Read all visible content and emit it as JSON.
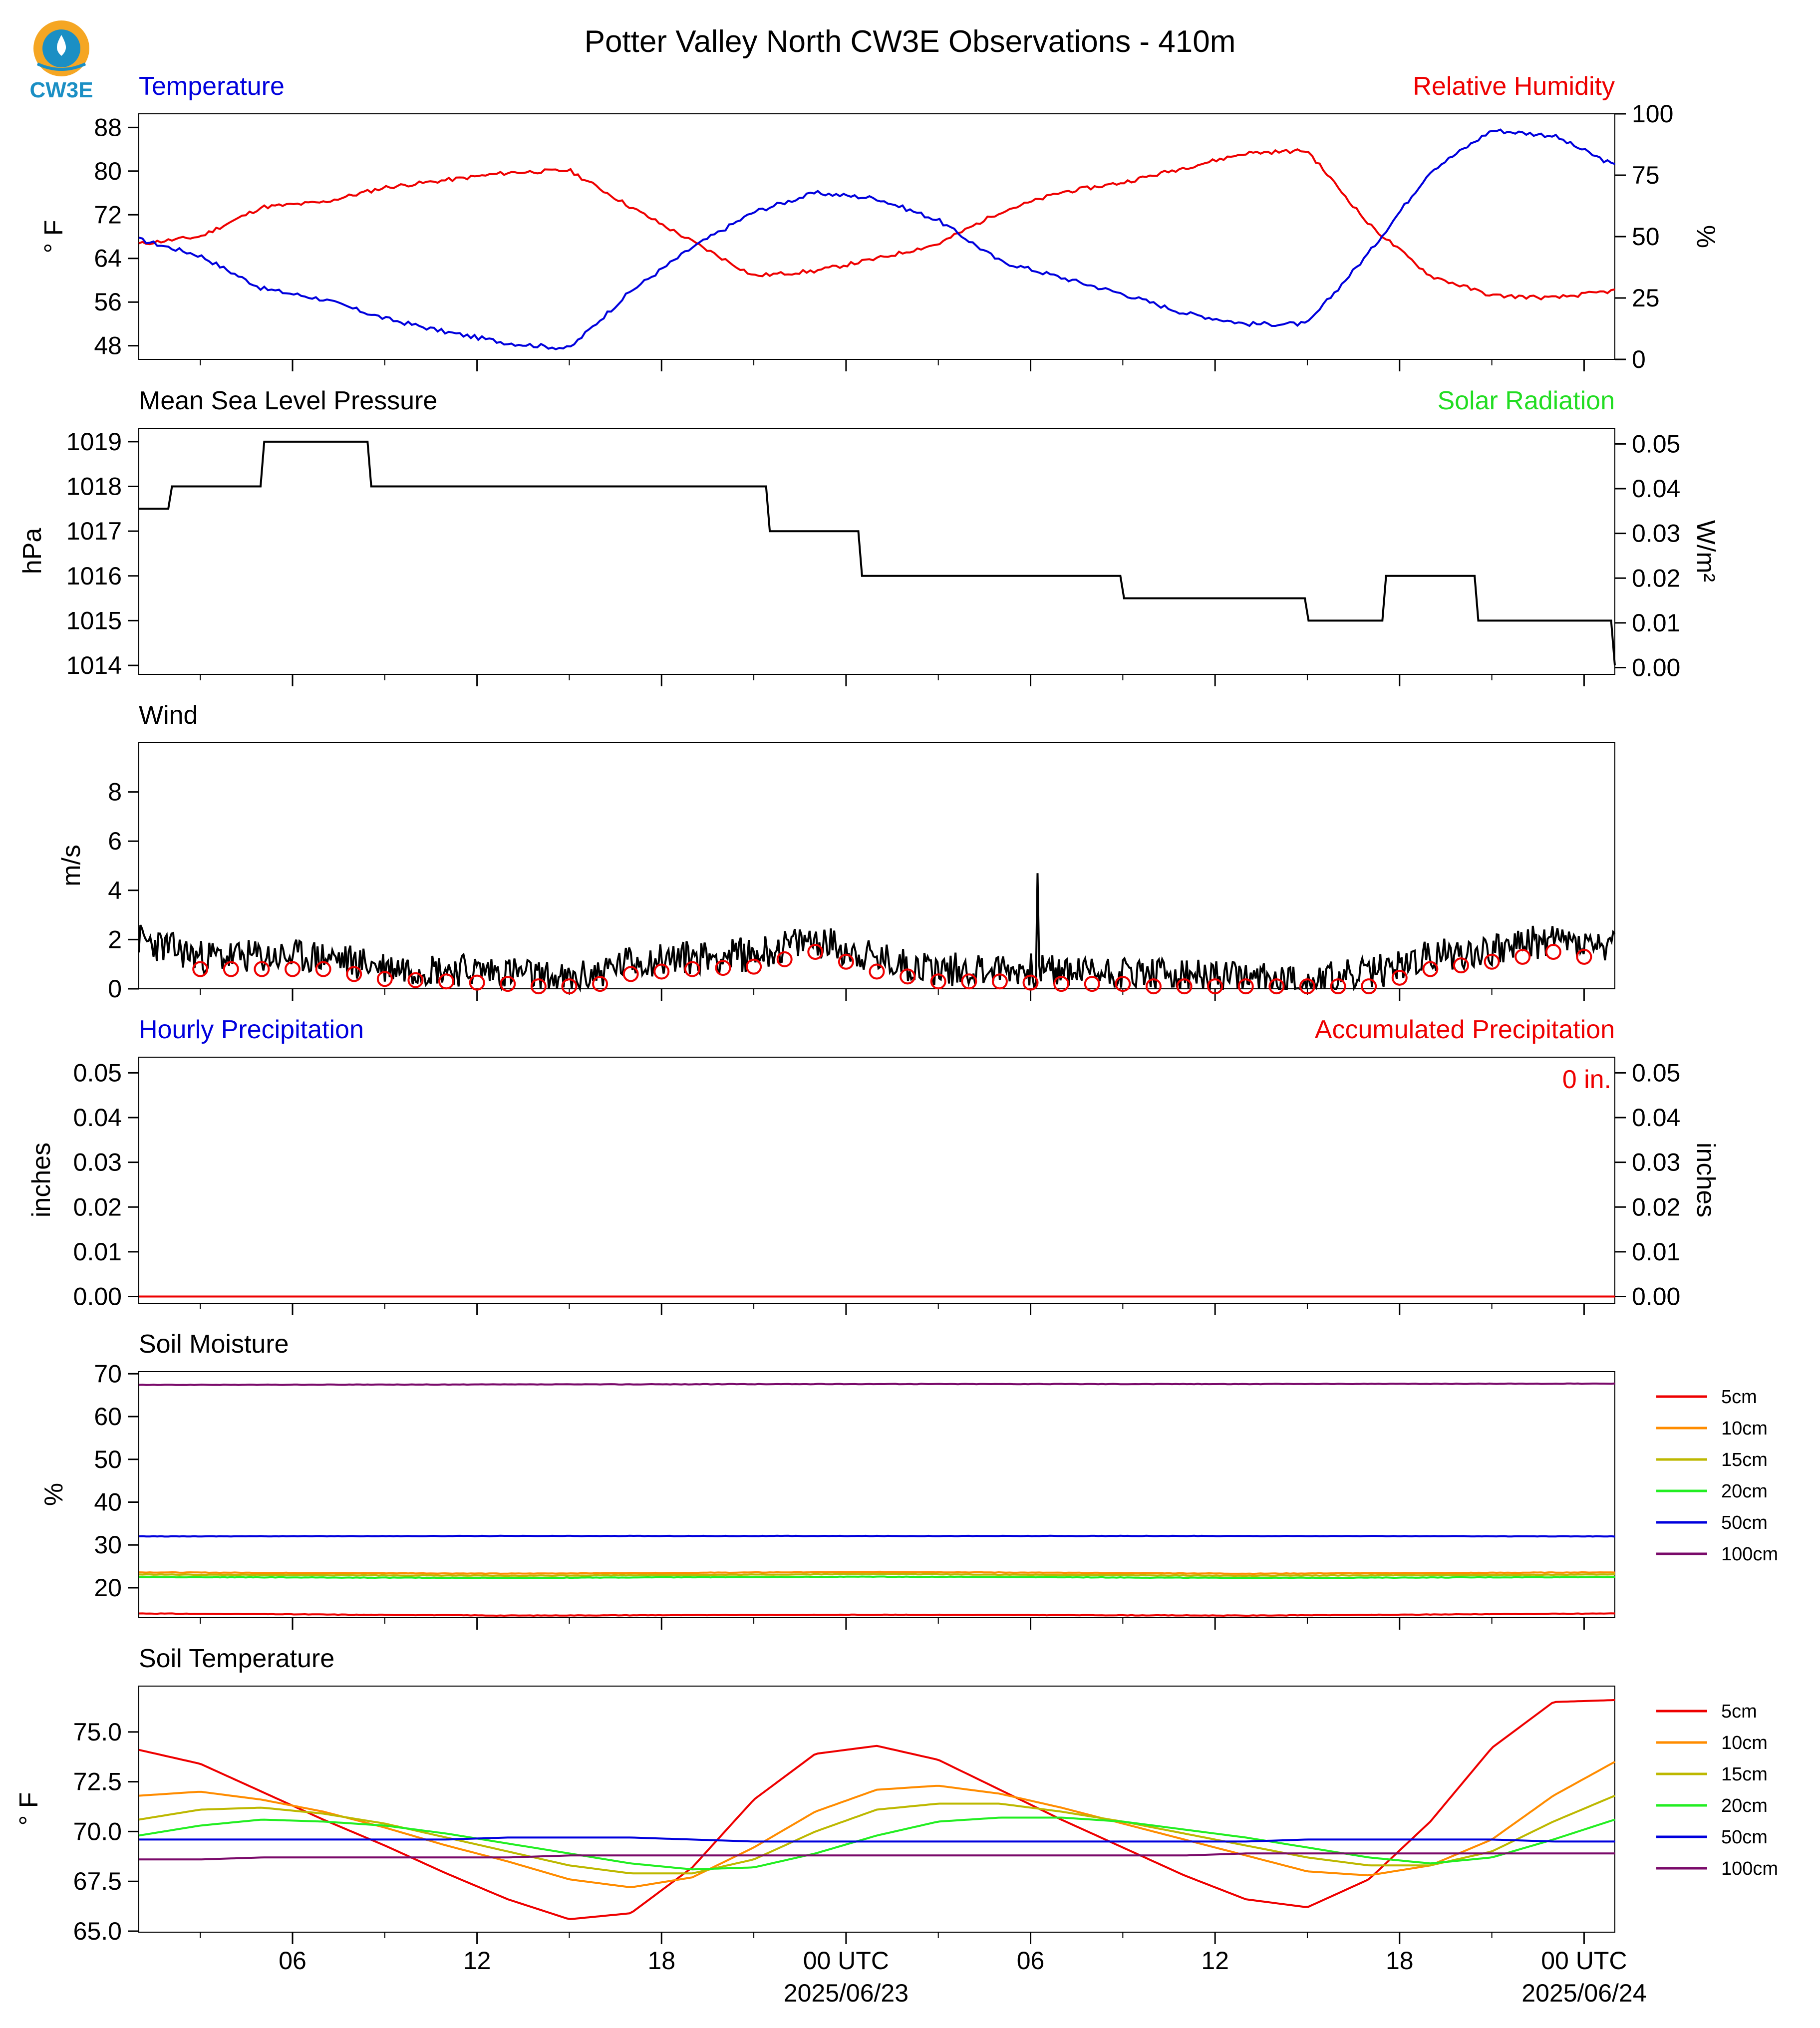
{
  "title": "Potter Valley North CW3E Observations - 410m",
  "logo": {
    "text": "CW3E",
    "colors": [
      "#f5a623",
      "#1b8fc4"
    ]
  },
  "time_axis": {
    "tick_labels": [
      "06",
      "12",
      "18",
      "00 UTC",
      "06",
      "12",
      "18",
      "00 UTC"
    ],
    "date_labels": [
      "2025/06/23",
      "2025/06/24"
    ],
    "start": "2025-06-22T01:00Z",
    "end": "2025-06-24T01:00Z"
  },
  "colors": {
    "temperature": "#0000dd",
    "humidity": "#ee0000",
    "pressure": "#000000",
    "solar": "#22dd22",
    "wind": "#000000",
    "gust": "#ee0000",
    "precip_hourly": "#0000dd",
    "precip_accum": "#ee0000"
  },
  "panels": {
    "temp": {
      "left_title": "Temperature",
      "right_title": "Relative Humidity",
      "left_axis_label": "° F",
      "right_axis_label": "%",
      "left_ticks": [
        "88",
        "80",
        "72",
        "64",
        "56",
        "48"
      ],
      "right_ticks": [
        "100",
        "75",
        "50",
        "25",
        "0"
      ]
    },
    "pressure": {
      "left_title": "Mean Sea Level Pressure",
      "right_title": "Solar Radiation",
      "left_axis_label": "hPa",
      "right_axis_label": "W/m²",
      "left_ticks": [
        "1019",
        "1018",
        "1017",
        "1016",
        "1015",
        "1014"
      ],
      "right_ticks": [
        "0.05",
        "0.04",
        "0.03",
        "0.02",
        "0.01",
        "0.00"
      ]
    },
    "wind": {
      "left_title": "Wind",
      "left_axis_label": "m/s",
      "left_ticks": [
        "8",
        "6",
        "4",
        "2",
        "0"
      ]
    },
    "precip": {
      "left_title": "Hourly Precipitation",
      "right_title": "Accumulated Precipitation",
      "left_axis_label": "inches",
      "right_axis_label": "inches",
      "left_ticks": [
        "0.05",
        "0.04",
        "0.03",
        "0.02",
        "0.01",
        "0.00"
      ],
      "right_ticks": [
        "0.05",
        "0.04",
        "0.03",
        "0.02",
        "0.01",
        "0.00"
      ],
      "total_label": "0 in."
    },
    "soil_moisture": {
      "left_title": "Soil Moisture",
      "left_axis_label": "%",
      "left_ticks": [
        "70",
        "60",
        "50",
        "40",
        "30",
        "20"
      ],
      "legend": [
        "5cm",
        "10cm",
        "15cm",
        "20cm",
        "50cm",
        "100cm"
      ]
    },
    "soil_temp": {
      "left_title": "Soil Temperature",
      "left_axis_label": "° F",
      "left_ticks": [
        "75.0",
        "72.5",
        "70.0",
        "67.5",
        "65.0"
      ],
      "legend": [
        "5cm",
        "10cm",
        "15cm",
        "20cm",
        "50cm",
        "100cm"
      ]
    }
  },
  "depth_colors": [
    "#ee0000",
    "#ff8c00",
    "#bdb800",
    "#22ee22",
    "#0000dd",
    "#7a0a6a"
  ],
  "chart_data": [
    {
      "type": "line",
      "title": "Temperature",
      "unit": "°F",
      "ylim": [
        45.5,
        90.5
      ],
      "x": [
        "06-22 01Z",
        "06-22 03Z",
        "06-22 05Z",
        "06-22 07Z",
        "06-22 09Z",
        "06-22 11Z",
        "06-22 13Z",
        "06-22 15Z",
        "06-22 17Z",
        "06-22 19Z",
        "06-22 21Z",
        "06-22 23Z",
        "06-23 01Z",
        "06-23 03Z",
        "06-23 05Z",
        "06-23 07Z",
        "06-23 09Z",
        "06-23 11Z",
        "06-23 13Z",
        "06-23 15Z",
        "06-23 17Z",
        "06-23 19Z",
        "06-23 21Z",
        "06-23 23Z",
        "06-24 01Z"
      ],
      "series": [
        {
          "values": [
            67.5,
            64.5,
            58.5,
            56.5,
            53.0,
            50.5,
            48.5,
            47.5,
            58.0,
            66.0,
            72.5,
            76.0,
            75.0,
            71.0,
            63.5,
            60.5,
            57.5,
            54.0,
            52.0,
            52.0,
            65.0,
            80.0,
            87.5,
            86.5,
            81.0
          ]
        }
      ]
    },
    {
      "type": "line",
      "title": "Relative Humidity",
      "unit": "%",
      "ylim": [
        0,
        100
      ],
      "x": [
        "06-22 01Z",
        "06-22 03Z",
        "06-22 05Z",
        "06-22 07Z",
        "06-22 09Z",
        "06-22 11Z",
        "06-22 13Z",
        "06-22 15Z",
        "06-22 17Z",
        "06-22 19Z",
        "06-22 21Z",
        "06-22 23Z",
        "06-23 01Z",
        "06-23 03Z",
        "06-23 05Z",
        "06-23 07Z",
        "06-23 09Z",
        "06-23 11Z",
        "06-23 13Z",
        "06-23 15Z",
        "06-23 17Z",
        "06-23 19Z",
        "06-23 21Z",
        "06-23 23Z",
        "06-24 01Z"
      ],
      "series": [
        {
          "values": [
            47,
            50,
            62,
            64,
            70,
            73,
            76,
            77,
            62,
            48,
            34,
            36,
            41,
            47,
            60,
            68,
            72,
            78,
            84,
            85,
            55,
            34,
            26,
            25,
            28
          ]
        }
      ]
    },
    {
      "type": "line",
      "title": "Mean Sea Level Pressure",
      "unit": "hPa",
      "ylim": [
        1013.8,
        1019.3
      ],
      "x": [
        "06-22 01Z",
        "06-22 02Z",
        "06-22 04Z",
        "06-22 05Z",
        "06-22 08.5Z",
        "06-22 19.5Z",
        "06-22 21.5Z",
        "06-23 00.5Z",
        "06-23 09Z",
        "06-23 15Z",
        "06-23 17.5Z",
        "06-23 20.5Z",
        "06-24 01Z"
      ],
      "series": [
        {
          "values": [
            1017.5,
            1018,
            1018,
            1019,
            1018,
            1018,
            1017,
            1016,
            1015.5,
            1015,
            1016,
            1015,
            1014
          ]
        }
      ]
    },
    {
      "type": "line",
      "title": "Wind",
      "unit": "m/s",
      "ylim": [
        0,
        10
      ],
      "x": [
        "06-22 01Z",
        "06-22 03Z",
        "06-22 05Z",
        "06-22 07Z",
        "06-22 09Z",
        "06-22 11Z",
        "06-22 13Z",
        "06-22 15Z",
        "06-22 17Z",
        "06-22 19Z",
        "06-22 21Z",
        "06-22 23Z",
        "06-23 01Z",
        "06-23 03Z",
        "06-23 05Z",
        "06-23 07Z",
        "06-23 09Z",
        "06-23 11Z",
        "06-23 13Z",
        "06-23 15Z",
        "06-23 17Z",
        "06-23 19Z",
        "06-23 21Z",
        "06-23 23Z",
        "06-24 01Z"
      ],
      "series": [
        {
          "values": [
            2.0,
            1.3,
            1.3,
            1.3,
            0.9,
            0.8,
            0.7,
            0.3,
            1.1,
            1.3,
            1.4,
            2.0,
            1.2,
            0.8,
            0.8,
            0.7,
            0.7,
            0.5,
            0.4,
            0.3,
            0.6,
            1.3,
            1.6,
            2.0,
            1.6
          ]
        }
      ],
      "max_gust": {
        "x": "06-22 23.5Z",
        "value": 4.7
      },
      "markers": [
        {
          "x": "06-22 04Z",
          "value": 0.8
        },
        {
          "x": "06-22 09Z",
          "value": 0.9
        },
        {
          "x": "06-22 14Z",
          "value": 0.4
        },
        {
          "x": "06-22 19Z",
          "value": 0.9
        },
        {
          "x": "06-23 00Z",
          "value": 0.9
        },
        {
          "x": "06-23 05Z",
          "value": 0.7
        },
        {
          "x": "06-23 10Z",
          "value": 0.6
        },
        {
          "x": "06-23 15Z",
          "value": 0.2
        },
        {
          "x": "06-23 20Z",
          "value": 1.2
        }
      ]
    },
    {
      "type": "line",
      "title": "Hourly Precipitation",
      "unit": "inches",
      "ylim": [
        0,
        0.055
      ],
      "x": [
        "06-22 01Z",
        "06-24 01Z"
      ],
      "series": [
        {
          "values": [
            0.0,
            0.0
          ]
        }
      ]
    },
    {
      "type": "line",
      "title": "Soil Moisture",
      "unit": "%",
      "ylim": [
        13,
        70.5
      ],
      "x": [
        "06-22 01Z",
        "06-22 13Z",
        "06-23 01Z",
        "06-23 13Z",
        "06-24 01Z"
      ],
      "series": [
        {
          "name": "5cm",
          "values": [
            14.0,
            13.5,
            13.7,
            13.5,
            14.0
          ]
        },
        {
          "name": "10cm",
          "values": [
            23.6,
            23.3,
            23.7,
            23.3,
            23.6
          ]
        },
        {
          "name": "15cm",
          "values": [
            23.1,
            22.8,
            23.2,
            22.8,
            23.1
          ]
        },
        {
          "name": "20cm",
          "values": [
            22.5,
            22.3,
            22.6,
            22.3,
            22.5
          ]
        },
        {
          "name": "50cm",
          "values": [
            32.0,
            32.1,
            32.1,
            32.1,
            32.0
          ]
        },
        {
          "name": "100cm",
          "values": [
            67.4,
            67.5,
            67.6,
            67.6,
            67.7
          ]
        }
      ]
    },
    {
      "type": "line",
      "title": "Soil Temperature",
      "unit": "°F",
      "ylim": [
        64.95,
        77.3
      ],
      "x": [
        "06-22 01Z",
        "06-22 03Z",
        "06-22 05Z",
        "06-22 07Z",
        "06-22 09Z",
        "06-22 11Z",
        "06-22 13Z",
        "06-22 15Z",
        "06-22 17Z",
        "06-22 19Z",
        "06-22 21Z",
        "06-22 23Z",
        "06-23 01Z",
        "06-23 03Z",
        "06-23 05Z",
        "06-23 07Z",
        "06-23 09Z",
        "06-23 11Z",
        "06-23 13Z",
        "06-23 15Z",
        "06-23 17Z",
        "06-23 19Z",
        "06-23 21Z",
        "06-23 23Z",
        "06-24 01Z"
      ],
      "series": [
        {
          "name": "5cm",
          "values": [
            74.1,
            73.4,
            72.0,
            70.6,
            69.3,
            67.9,
            66.6,
            65.6,
            65.9,
            68.2,
            71.6,
            73.9,
            74.3,
            73.6,
            72.1,
            70.6,
            69.2,
            67.8,
            66.6,
            66.2,
            67.6,
            70.5,
            74.2,
            76.5,
            76.6
          ]
        },
        {
          "name": "10cm",
          "values": [
            71.8,
            72.0,
            71.6,
            71.0,
            70.2,
            69.3,
            68.5,
            67.6,
            67.2,
            67.7,
            69.2,
            71.0,
            72.1,
            72.3,
            71.9,
            71.2,
            70.4,
            69.6,
            68.8,
            68.0,
            67.8,
            68.3,
            69.6,
            71.8,
            73.5
          ]
        },
        {
          "name": "15cm",
          "values": [
            70.6,
            71.1,
            71.2,
            70.9,
            70.4,
            69.7,
            69.0,
            68.3,
            67.9,
            67.9,
            68.6,
            70.0,
            71.1,
            71.4,
            71.4,
            71.0,
            70.5,
            69.9,
            69.3,
            68.7,
            68.3,
            68.3,
            69.0,
            70.5,
            71.8
          ]
        },
        {
          "name": "20cm",
          "values": [
            69.8,
            70.3,
            70.6,
            70.5,
            70.3,
            69.9,
            69.4,
            68.9,
            68.4,
            68.1,
            68.2,
            68.9,
            69.8,
            70.5,
            70.7,
            70.7,
            70.5,
            70.1,
            69.7,
            69.2,
            68.7,
            68.4,
            68.7,
            69.6,
            70.6
          ]
        },
        {
          "name": "50cm",
          "values": [
            69.6,
            69.6,
            69.6,
            69.6,
            69.6,
            69.6,
            69.7,
            69.7,
            69.7,
            69.6,
            69.5,
            69.5,
            69.5,
            69.5,
            69.5,
            69.5,
            69.5,
            69.5,
            69.5,
            69.6,
            69.6,
            69.6,
            69.6,
            69.5,
            69.5
          ]
        },
        {
          "name": "100cm",
          "values": [
            68.6,
            68.6,
            68.7,
            68.7,
            68.7,
            68.7,
            68.7,
            68.8,
            68.8,
            68.8,
            68.8,
            68.8,
            68.8,
            68.8,
            68.8,
            68.8,
            68.8,
            68.8,
            68.9,
            68.9,
            68.9,
            68.9,
            68.9,
            68.9,
            68.9
          ]
        }
      ]
    }
  ]
}
